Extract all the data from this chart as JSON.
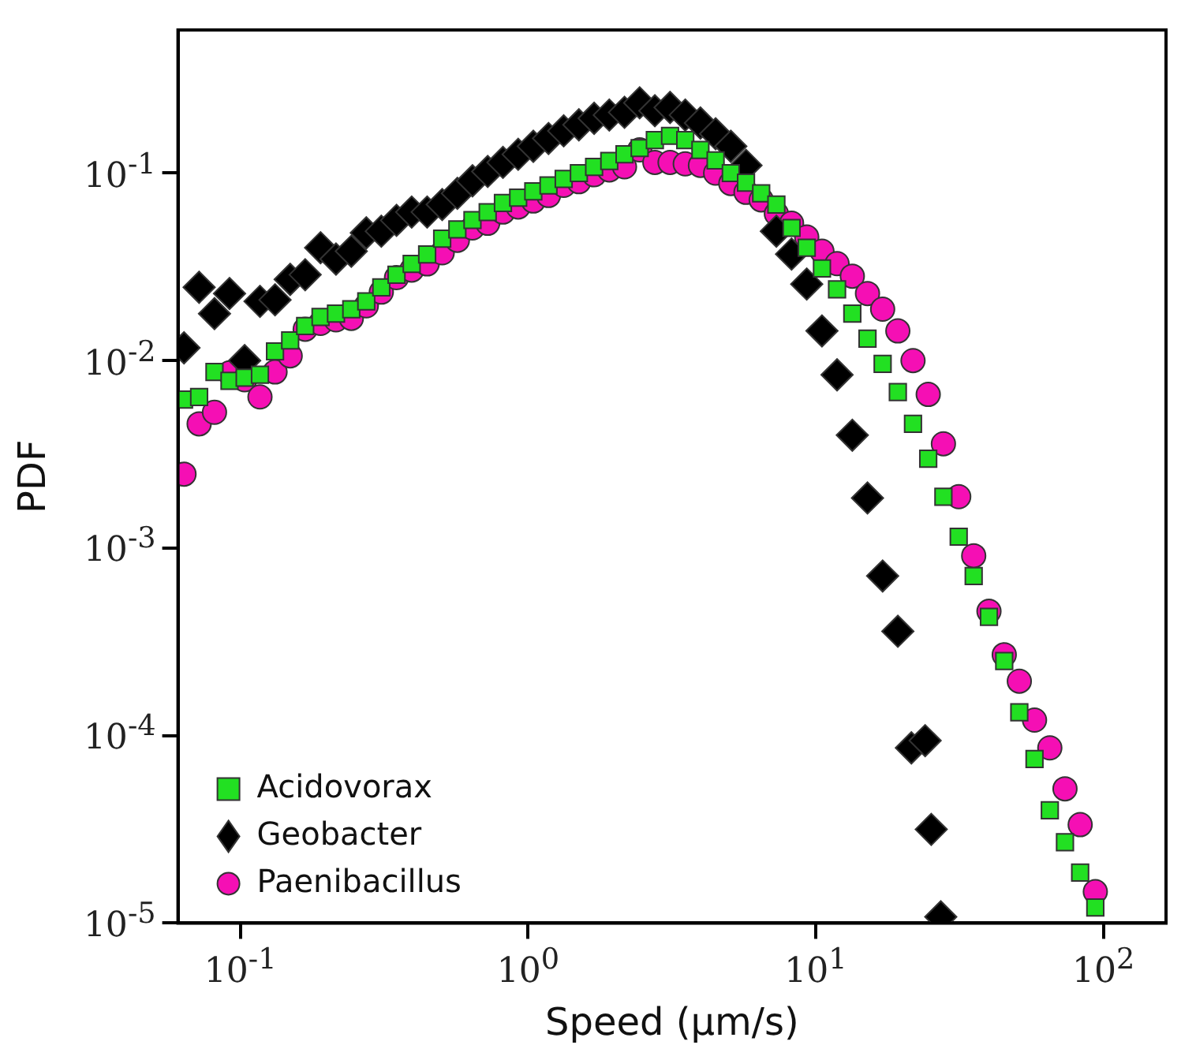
{
  "chart_data": {
    "type": "scatter",
    "xlabel": "Speed (μm/s)",
    "ylabel": "PDF",
    "log": "xy",
    "grid": false,
    "legend": "bottom left",
    "xlim": [
      0.0607,
      165
    ],
    "ylim": [
      1e-05,
      0.58
    ],
    "xticks": [
      {
        "value": 0.1,
        "label": "10$^{-1}$"
      },
      {
        "value": 1,
        "label": "10$^{0}$"
      },
      {
        "value": 10,
        "label": "10$^{1}$"
      },
      {
        "value": 100,
        "label": "10$^{2}$"
      }
    ],
    "yticks": [
      {
        "value": 1e-05,
        "label": "10$^{-5}$"
      },
      {
        "value": 0.0001,
        "label": "10$^{-4}$"
      },
      {
        "value": 0.001,
        "label": "10$^{-3}$"
      },
      {
        "value": 0.01,
        "label": "10$^{-2}$"
      },
      {
        "value": 0.1,
        "label": "10$^{-1}$"
      }
    ],
    "x": [
      0.0637,
      0.0719,
      0.0813,
      0.0917,
      0.1035,
      0.117,
      0.132,
      0.149,
      0.168,
      0.19,
      0.215,
      0.243,
      0.274,
      0.309,
      0.349,
      0.394,
      0.446,
      0.503,
      0.568,
      0.641,
      0.724,
      0.818,
      0.924,
      1.043,
      1.178,
      1.33,
      1.502,
      1.697,
      1.916,
      2.164,
      2.443,
      2.759,
      3.116,
      3.519,
      3.973,
      4.487,
      5.067,
      5.722,
      6.461,
      7.296,
      8.239,
      9.304,
      10.51,
      11.86,
      13.4,
      15.13,
      17.08,
      19.29,
      21.78,
      24.6,
      27.78,
      31.4,
      35.4,
      40.0,
      45.2,
      51.0,
      57.6,
      65.1,
      73.5,
      83.0,
      93.7
    ],
    "series": [
      {
        "name": "Acidovorax",
        "color": "#22e022",
        "marker": "square",
        "values": [
          0.0062,
          0.0064,
          0.0087,
          0.0078,
          0.0081,
          0.0084,
          0.0112,
          0.0128,
          0.0153,
          0.0171,
          0.0178,
          0.0188,
          0.0207,
          0.0246,
          0.0287,
          0.0328,
          0.0368,
          0.0447,
          0.0501,
          0.0562,
          0.0619,
          0.0693,
          0.074,
          0.08,
          0.086,
          0.093,
          0.1,
          0.108,
          0.116,
          0.126,
          0.136,
          0.15,
          0.158,
          0.15,
          0.133,
          0.117,
          0.1,
          0.089,
          0.078,
          0.068,
          0.051,
          0.04,
          0.031,
          0.024,
          0.0178,
          0.0131,
          0.0096,
          0.0068,
          0.0046,
          0.003,
          0.00188,
          0.00115,
          0.00071,
          0.00043,
          0.00025,
          0.000133,
          7.5e-05,
          4e-05,
          2.7e-05,
          1.86e-05,
          1.21e-05
        ]
      },
      {
        "name": "Geobacter",
        "color": "#000000",
        "marker": "diamond",
        "x": [
          0.0637,
          0.0719,
          0.0813,
          0.0917,
          0.1035,
          0.117,
          0.132,
          0.149,
          0.168,
          0.19,
          0.215,
          0.243,
          0.274,
          0.309,
          0.349,
          0.394,
          0.446,
          0.503,
          0.568,
          0.641,
          0.724,
          0.818,
          0.924,
          1.043,
          1.178,
          1.33,
          1.502,
          1.697,
          1.916,
          2.164,
          2.443,
          2.759,
          3.116,
          3.519,
          3.973,
          4.487,
          5.067,
          5.722,
          6.461,
          7.296,
          8.239,
          9.304,
          10.51,
          11.86,
          13.4,
          15.13,
          17.08,
          19.29,
          21.5,
          24.0,
          25.2,
          27.2
        ],
        "values": [
          0.0117,
          0.0246,
          0.0178,
          0.0228,
          0.01,
          0.0207,
          0.0211,
          0.0271,
          0.0287,
          0.04,
          0.0348,
          0.0383,
          0.048,
          0.049,
          0.056,
          0.062,
          0.062,
          0.068,
          0.078,
          0.091,
          0.102,
          0.114,
          0.126,
          0.139,
          0.153,
          0.168,
          0.181,
          0.196,
          0.204,
          0.211,
          0.237,
          0.215,
          0.224,
          0.204,
          0.185,
          0.162,
          0.139,
          0.11,
          null,
          0.049,
          0.037,
          0.0256,
          0.0144,
          0.0084,
          0.004,
          0.00185,
          0.00071,
          0.00036,
          8.6e-05,
          9.4e-05,
          3.16e-05,
          1.08e-05
        ]
      },
      {
        "name": "Paenibacillus",
        "color": "#f50fb4",
        "marker": "circle",
        "values": [
          0.00248,
          0.0046,
          0.0053,
          0.0086,
          0.0079,
          0.0064,
          0.0087,
          0.0106,
          0.0147,
          0.0158,
          0.0165,
          0.0168,
          0.0196,
          0.0232,
          0.0277,
          0.0304,
          0.0328,
          0.0376,
          0.0438,
          0.051,
          0.054,
          0.062,
          0.066,
          0.071,
          0.076,
          0.086,
          0.09,
          0.098,
          0.104,
          0.108,
          0.133,
          0.114,
          0.114,
          0.112,
          0.11,
          0.1,
          0.088,
          0.079,
          0.072,
          0.0607,
          0.054,
          0.0456,
          0.0383,
          0.0329,
          0.0282,
          0.0228,
          0.0188,
          0.0144,
          0.01,
          0.0066,
          0.0036,
          0.00188,
          0.00091,
          0.00046,
          0.00027,
          0.000195,
          0.000121,
          8.6e-05,
          5.2e-05,
          3.35e-05,
          1.47e-05
        ]
      }
    ]
  }
}
